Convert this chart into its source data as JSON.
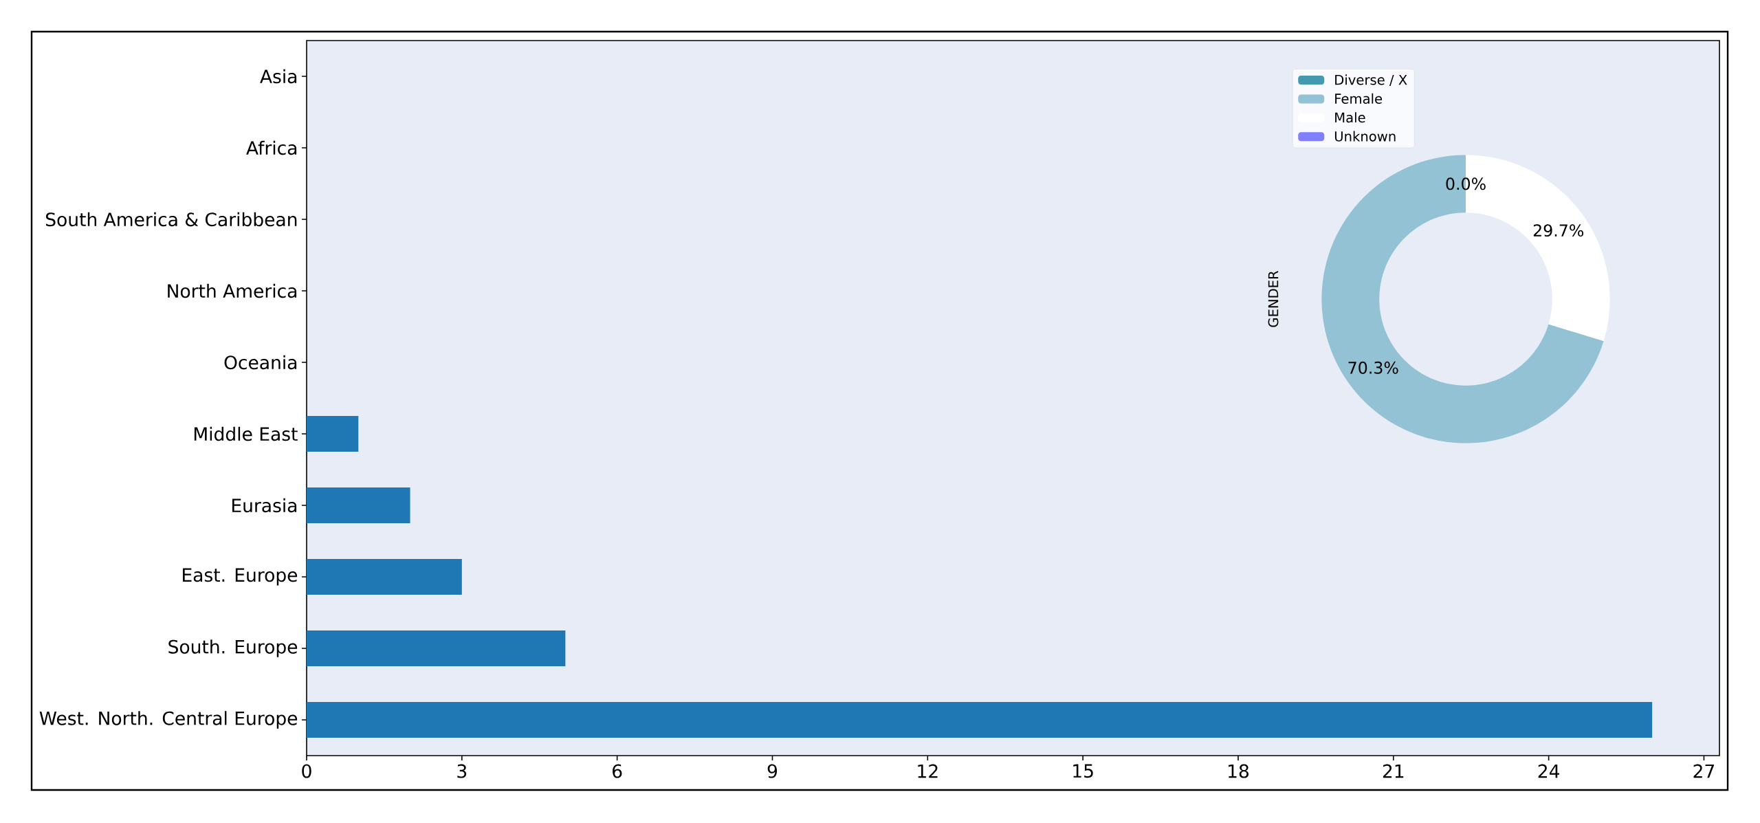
{
  "chart_data": [
    {
      "type": "bar",
      "orientation": "horizontal",
      "categories": [
        "Asia",
        "Africa",
        "South America & Caribbean",
        "North America",
        "Oceania",
        "Middle East",
        "Eurasia",
        "East. Europe",
        "South. Europe",
        "West. North. Central Europe"
      ],
      "values": [
        0,
        0,
        0,
        0,
        0,
        1,
        2,
        3,
        5,
        26
      ],
      "color": "#1f77b4",
      "xlim": [
        0,
        27.3
      ],
      "xticks": [
        0,
        3,
        6,
        9,
        12,
        15,
        18,
        21,
        24,
        27
      ]
    },
    {
      "type": "donut",
      "ylabel": "GENDER",
      "categories": [
        "Diverse / X",
        "Female",
        "Male",
        "Unknown"
      ],
      "values": [
        0.0,
        70.3,
        29.7,
        0.0
      ],
      "colors": [
        "#4299b0",
        "#92c2d4",
        "#ffffff",
        "#8080ff"
      ],
      "value_labels": [
        "0.0%",
        "70.3%",
        "29.7%",
        null
      ],
      "legend": "top left"
    }
  ]
}
